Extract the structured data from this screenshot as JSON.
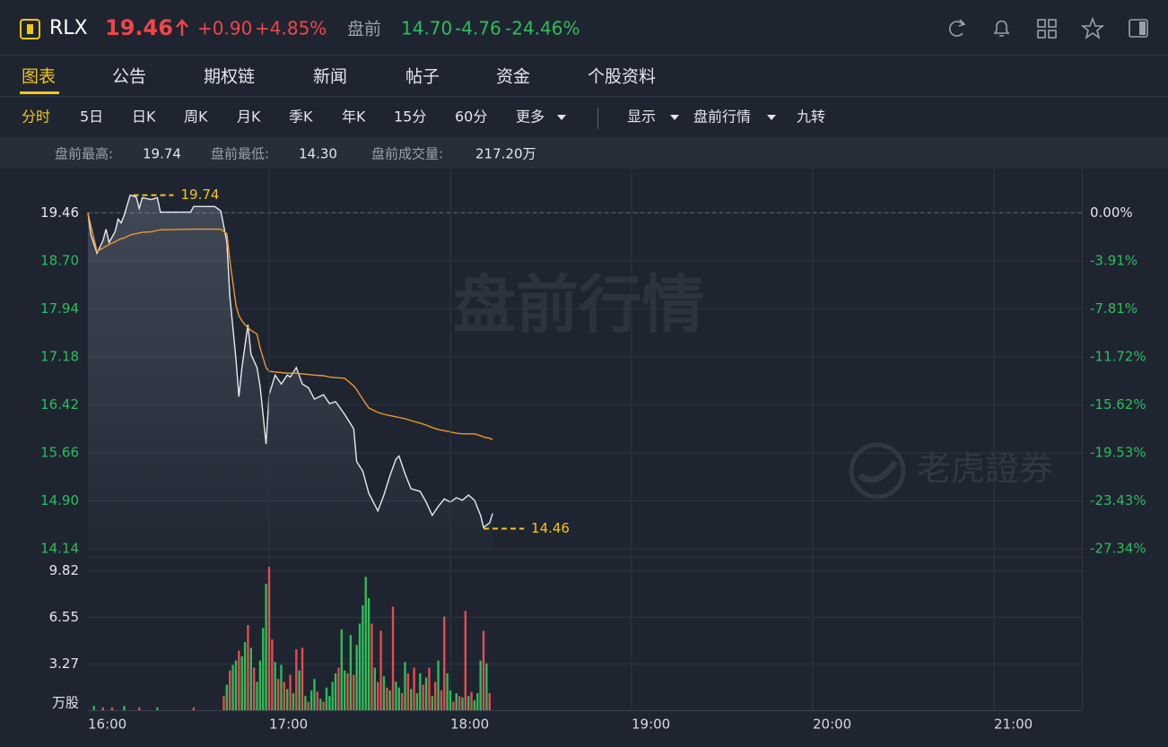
{
  "header": {
    "symbol": "RLX",
    "price": "19.46",
    "change": "+0.90",
    "change_pct": "+4.85%",
    "session": "盘前",
    "pre_price": "14.70",
    "pre_change": "-4.76",
    "pre_change_pct": "-24.46%"
  },
  "tabs": [
    "图表",
    "公告",
    "期权链",
    "新闻",
    "帖子",
    "资金",
    "个股资料"
  ],
  "toolbar": [
    "分时",
    "5日",
    "日K",
    "周K",
    "月K",
    "季K",
    "年K",
    "15分",
    "60分",
    "更多",
    "显示",
    "盘前行情",
    "九转"
  ],
  "stats": [
    {
      "label": "盘前最高:",
      "value": "19.74"
    },
    {
      "label": "盘前最低:",
      "value": "14.30"
    },
    {
      "label": "盘前成交量:",
      "value": "217.20万"
    }
  ],
  "watermark": "盘前行情",
  "logo": "老虎證券",
  "chart_data": [
    {
      "type": "line",
      "prev_close": 19.46,
      "xlim": [
        "16:00",
        "21:30"
      ],
      "ylim": [
        14.14,
        20.16
      ],
      "yticks": [
        19.46,
        {
          "value": 18.7,
          "label": "18.70"
        },
        17.94,
        17.18,
        16.42,
        15.66,
        {
          "value": 14.9,
          "label": "14.90"
        },
        14.14
      ],
      "y2lim": [
        -27.34,
        3.6
      ],
      "y2ticks": [
        {
          "value": 0,
          "label": "0.00%"
        },
        {
          "value": -3.91,
          "label": "-3.91%"
        },
        {
          "value": -7.81,
          "label": "-7.81%"
        },
        {
          "value": -11.72,
          "label": "-11.72%"
        },
        {
          "value": -15.62,
          "label": "-15.62%"
        },
        {
          "value": -19.53,
          "label": "-19.53%"
        },
        {
          "value": -23.43,
          "label": "-23.43%"
        },
        {
          "value": -27.34,
          "label": "-27.34%"
        }
      ],
      "x": [
        "16:00",
        "16:01",
        "16:03",
        "16:05",
        "16:06",
        "16:07",
        "16:09",
        "16:10",
        "16:11",
        "16:12",
        "16:14",
        "16:16",
        "16:17",
        "16:18",
        "16:21",
        "16:23",
        "16:24",
        "16:34",
        "16:35",
        "16:42",
        "16:44",
        "16:46",
        "16:47",
        "16:49",
        "16:50",
        "16:51",
        "16:52",
        "16:53",
        "16:54",
        "16:56",
        "16:57",
        "16:59",
        "17:00",
        "17:02",
        "17:04",
        "17:06",
        "17:07",
        "17:09",
        "17:11",
        "17:13",
        "17:15",
        "17:18",
        "17:20",
        "17:22",
        "17:25",
        "17:28",
        "17:29",
        "17:31",
        "17:33",
        "17:36",
        "17:38",
        "17:40",
        "17:42",
        "17:43",
        "17:45",
        "17:47",
        "17:50",
        "17:52",
        "17:54",
        "17:56",
        "17:58",
        "18:00",
        "18:02",
        "18:04",
        "18:06",
        "18:08",
        "18:10",
        "18:11",
        "18:13",
        "18:14"
      ],
      "series": [
        {
          "color": "#e6e9ee",
          "values": [
            19.46,
            19.11,
            18.82,
            19.02,
            19.2,
            18.99,
            19.16,
            19.36,
            19.3,
            19.42,
            19.74,
            19.71,
            19.53,
            19.7,
            19.67,
            19.7,
            19.47,
            19.47,
            19.56,
            19.56,
            19.49,
            19.0,
            18.14,
            17.15,
            16.55,
            17.01,
            17.36,
            17.69,
            17.22,
            17.01,
            16.72,
            15.8,
            16.58,
            16.89,
            16.75,
            16.89,
            16.86,
            17.01,
            16.75,
            16.69,
            16.51,
            16.58,
            16.44,
            16.47,
            16.27,
            16.04,
            15.52,
            15.37,
            15.02,
            14.74,
            14.99,
            15.3,
            15.56,
            15.61,
            15.33,
            15.09,
            15.05,
            14.88,
            14.67,
            14.81,
            14.93,
            14.88,
            14.95,
            14.91,
            14.99,
            14.91,
            14.67,
            14.48,
            14.55,
            14.7
          ]
        },
        {
          "color": "#f0962c",
          "values": [
            19.46,
            19.25,
            18.85,
            18.9,
            18.93,
            18.96,
            19.0,
            19.03,
            19.05,
            19.06,
            19.11,
            19.13,
            19.14,
            19.15,
            19.16,
            19.18,
            19.19,
            19.2,
            19.2,
            19.2,
            19.2,
            19.13,
            18.71,
            18.0,
            17.83,
            17.75,
            17.69,
            17.64,
            17.6,
            17.54,
            17.32,
            17.01,
            16.95,
            16.94,
            16.93,
            16.92,
            16.92,
            16.92,
            16.91,
            16.9,
            16.89,
            16.88,
            16.86,
            16.85,
            16.84,
            16.72,
            16.66,
            16.51,
            16.37,
            16.3,
            16.27,
            16.25,
            16.23,
            16.22,
            16.2,
            16.17,
            16.13,
            16.1,
            16.06,
            16.03,
            16.01,
            15.99,
            15.97,
            15.96,
            15.96,
            15.96,
            15.93,
            15.91,
            15.89,
            15.87
          ]
        }
      ],
      "annotations": [
        {
          "x": "16:15",
          "value": 19.74
        },
        {
          "x": "18:11",
          "value": 14.46
        }
      ],
      "annotation_color": "#f5c518"
    },
    {
      "type": "bar",
      "xlim": [
        "16:00",
        "21:30"
      ],
      "xticks": [
        "16:00",
        "17:00",
        "18:00",
        "19:00",
        "20:00",
        "21:00"
      ],
      "ylim": [
        0,
        10.3
      ],
      "yticks": [
        {
          "value": 0,
          "label": "万股"
        },
        3.27,
        6.55,
        9.82
      ],
      "x": [
        "16:02",
        "16:05",
        "16:08",
        "16:12",
        "16:17",
        "16:23",
        "16:35",
        "16:45",
        "16:46",
        "16:47",
        "16:48",
        "16:49",
        "16:50",
        "16:51",
        "16:52",
        "16:53",
        "16:54",
        "16:55",
        "16:56",
        "16:57",
        "16:58",
        "16:59",
        "17:00",
        "17:01",
        "17:02",
        "17:03",
        "17:04",
        "17:05",
        "17:06",
        "17:07",
        "17:08",
        "17:09",
        "17:10",
        "17:11",
        "17:12",
        "17:13",
        "17:14",
        "17:15",
        "17:16",
        "17:17",
        "17:18",
        "17:19",
        "17:20",
        "17:21",
        "17:22",
        "17:23",
        "17:24",
        "17:25",
        "17:26",
        "17:27",
        "17:28",
        "17:29",
        "17:30",
        "17:31",
        "17:32",
        "17:33",
        "17:34",
        "17:35",
        "17:36",
        "17:37",
        "17:38",
        "17:39",
        "17:40",
        "17:41",
        "17:42",
        "17:43",
        "17:44",
        "17:45",
        "17:46",
        "17:47",
        "17:48",
        "17:49",
        "17:50",
        "17:51",
        "17:52",
        "17:53",
        "17:54",
        "17:55",
        "17:56",
        "17:57",
        "17:58",
        "17:59",
        "18:00",
        "18:01",
        "18:02",
        "18:03",
        "18:04",
        "18:05",
        "18:06",
        "18:07",
        "18:08",
        "18:09",
        "18:10",
        "18:11",
        "18:12",
        "18:13"
      ],
      "values": [
        0.3,
        0.2,
        0.2,
        0.3,
        0.2,
        0.2,
        0.2,
        1.0,
        1.8,
        2.8,
        3.2,
        3.5,
        4.2,
        3.8,
        4.8,
        6.0,
        4.4,
        3.0,
        2.0,
        3.5,
        5.8,
        8.9,
        10.1,
        5.0,
        3.4,
        2.2,
        3.2,
        2.0,
        1.5,
        2.5,
        1.2,
        4.3,
        2.8,
        4.4,
        1.0,
        0.6,
        1.4,
        2.2,
        1.3,
        0.8,
        0.6,
        1.6,
        1.0,
        2.0,
        2.6,
        3.0,
        5.7,
        2.8,
        2.6,
        5.3,
        2.5,
        4.6,
        6.1,
        7.4,
        9.4,
        7.9,
        6.1,
        3.0,
        2.0,
        5.6,
        2.4,
        1.6,
        1.4,
        7.3,
        2.0,
        1.6,
        1.2,
        3.4,
        2.6,
        1.5,
        3.0,
        1.2,
        2.6,
        1.8,
        2.3,
        3.0,
        1.0,
        2.0,
        3.5,
        1.4,
        6.6,
        2.6,
        1.4,
        0.6,
        1.2,
        1.0,
        0.9,
        7.0,
        1.0,
        1.3,
        0.7,
        1.2,
        3.5,
        5.6,
        3.3,
        1.2
      ],
      "colors": [
        "#2dbd5a",
        "#e84a4f",
        "#e84a4f",
        "#2dbd5a",
        "#e84a4f",
        "#2dbd5a",
        "#e84a4f",
        "#e84a4f",
        "#2dbd5a",
        "#e84a4f",
        "#2dbd5a",
        "#2dbd5a",
        "#e84a4f",
        "#2dbd5a",
        "#2dbd5a",
        "#e84a4f",
        "#2dbd5a",
        "#e84a4f",
        "#2dbd5a",
        "#2dbd5a",
        "#2dbd5a",
        "#2dbd5a",
        "#e84a4f",
        "#e84a4f",
        "#2dbd5a",
        "#e84a4f",
        "#2dbd5a",
        "#e84a4f",
        "#2dbd5a",
        "#e84a4f",
        "#2dbd5a",
        "#e84a4f",
        "#2dbd5a",
        "#e84a4f",
        "#2dbd5a",
        "#e84a4f",
        "#2dbd5a",
        "#2dbd5a",
        "#e84a4f",
        "#2dbd5a",
        "#e84a4f",
        "#2dbd5a",
        "#2dbd5a",
        "#2dbd5a",
        "#2dbd5a",
        "#e84a4f",
        "#2dbd5a",
        "#2dbd5a",
        "#e84a4f",
        "#2dbd5a",
        "#e84a4f",
        "#2dbd5a",
        "#2dbd5a",
        "#2dbd5a",
        "#2dbd5a",
        "#2dbd5a",
        "#e84a4f",
        "#2dbd5a",
        "#e84a4f",
        "#e84a4f",
        "#2dbd5a",
        "#e84a4f",
        "#2dbd5a",
        "#e84a4f",
        "#2dbd5a",
        "#2dbd5a",
        "#e84a4f",
        "#2dbd5a",
        "#e84a4f",
        "#2dbd5a",
        "#e84a4f",
        "#2dbd5a",
        "#2dbd5a",
        "#e84a4f",
        "#2dbd5a",
        "#e84a4f",
        "#2dbd5a",
        "#e84a4f",
        "#2dbd5a",
        "#e84a4f",
        "#e84a4f",
        "#2dbd5a",
        "#2dbd5a",
        "#e84a4f",
        "#2dbd5a",
        "#e84a4f",
        "#2dbd5a",
        "#e84a4f",
        "#2dbd5a",
        "#e84a4f",
        "#2dbd5a",
        "#2dbd5a",
        "#2dbd5a",
        "#e84a4f",
        "#2dbd5a",
        "#e84a4f"
      ]
    }
  ]
}
